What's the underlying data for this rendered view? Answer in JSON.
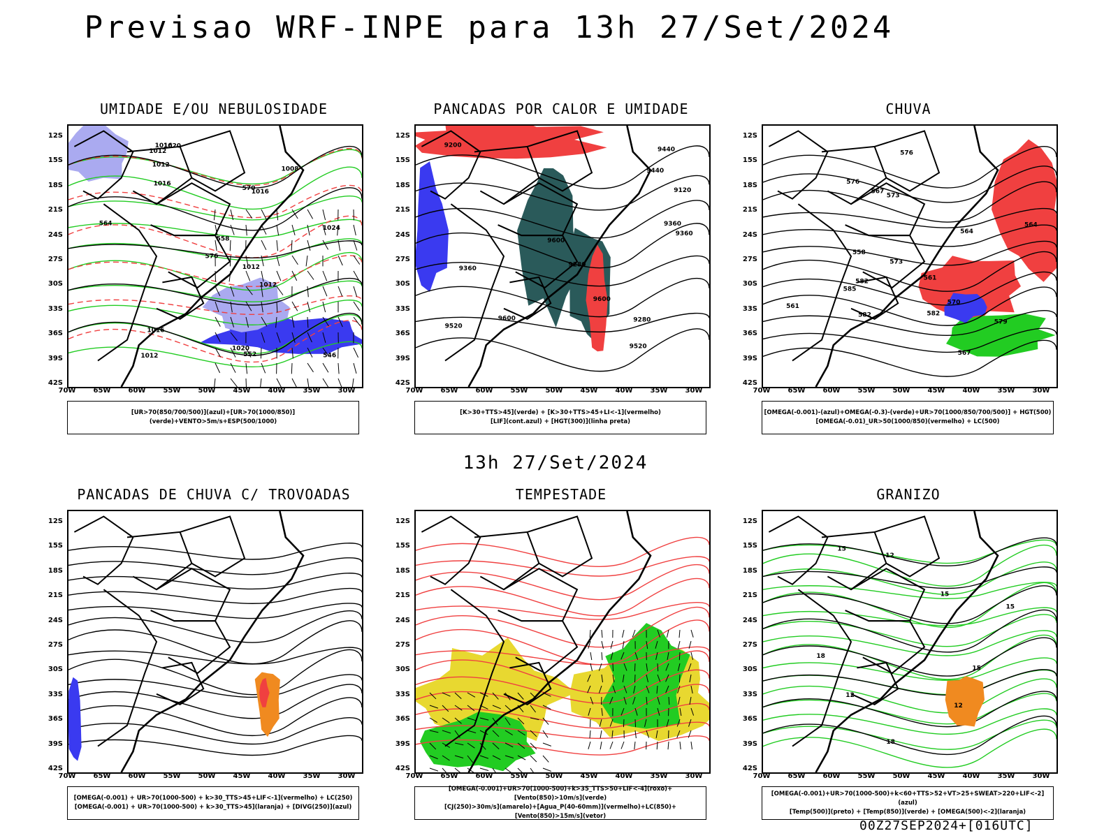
{
  "title": "Previsao WRF-INPE  para 13h 27/Set/2024",
  "subtitle": "13h 27/Set/2024",
  "footer": "00Z27SEP2024+[016UTC]",
  "lat_labels": [
    "12S",
    "15S",
    "18S",
    "21S",
    "24S",
    "27S",
    "30S",
    "33S",
    "36S",
    "39S",
    "42S"
  ],
  "lon_labels": [
    "70W",
    "65W",
    "60W",
    "55W",
    "50W",
    "45W",
    "40W",
    "35W",
    "30W"
  ],
  "colors": {
    "blue": "#3a3af0",
    "lightblue": "#aaaaf0",
    "green": "#22cc22",
    "red": "#f04040",
    "darkteal": "#2a5a5a",
    "yellow": "#e8d830",
    "orange": "#f08a20"
  },
  "panels": [
    {
      "title": "UMIDADE E/OU NEBULOSIDADE",
      "legend": [
        "[UR>70(850/700/500)](azul)+[UR>70(1000/850)](verde)+VENTO>5m/s+ESP(500/1000)"
      ],
      "labels": [
        "1012",
        "1016",
        "1012",
        "1012",
        "1016",
        "1020",
        "1016",
        "1012",
        "576",
        "570",
        "564",
        "558",
        "552",
        "546",
        "1008",
        "1012",
        "1016",
        "1020",
        "1024"
      ]
    },
    {
      "title": "PANCADAS POR CALOR E UMIDADE",
      "legend": [
        "[K>30+TTS>45](verde) + [K>30+TTS>45+LI<-1](vermelho)",
        "[LIF](cont.azul) + [HGT(300)](linha preta)"
      ],
      "labels": [
        "9600",
        "9600",
        "9600",
        "9520",
        "9520",
        "9440",
        "9440",
        "9360",
        "9360",
        "9280",
        "9280",
        "9200",
        "9120",
        "9360"
      ]
    },
    {
      "title": "CHUVA",
      "legend": [
        "[OMEGA(-0.001)-(azul)+OMEGA(-0.3)-(verde)+UR>70(1000/850/700/500)] + HGT(500)",
        "[OMEGA(-0.01)_UR>50(1000/850)(vermelho) + LC(500)"
      ],
      "labels": [
        "582",
        "585",
        "582",
        "582",
        "579",
        "576",
        "573",
        "570",
        "567",
        "564",
        "561",
        "561",
        "558",
        "576",
        "573",
        "567",
        "564"
      ]
    },
    {
      "title": "PANCADAS DE CHUVA C/ TROVOADAS",
      "legend": [
        "[OMEGA(-0.001) + UR>70(1000-500) + k>30_TTS>45+LIF<-1](vermelho) + LC(250)",
        "[OMEGA(-0.001) + UR>70(1000-500) + k>30_TTS>45](laranja) + [DIVG(250)](azul)"
      ],
      "labels": []
    },
    {
      "title": "TEMPESTADE",
      "legend": [
        "[OMEGA(-0.001)+UR>70(1000-500)+k>35_TTS>50+LIF<-4](roxo)+[Vento(850)>10m/s](verde)",
        "[CJ(250)>30m/s](amarelo)+[Agua_P(40-60mm)](vermelho)+LC(850)+[Vento(850)>15m/s](vetor)"
      ],
      "labels": []
    },
    {
      "title": "GRANIZO",
      "legend": [
        "[OMEGA(-0.001)+UR>70(1000-500)+k<60+TTS>52+VT>25+SWEAT>220+LIF<-2](azul)",
        "[Temp(500)](preto) + [Temp(850)](verde) + [OMEGA(500)<-2](laranja)"
      ],
      "labels": [
        "12",
        "15",
        "18",
        "15",
        "12",
        "15",
        "18",
        "15",
        "12"
      ]
    }
  ]
}
